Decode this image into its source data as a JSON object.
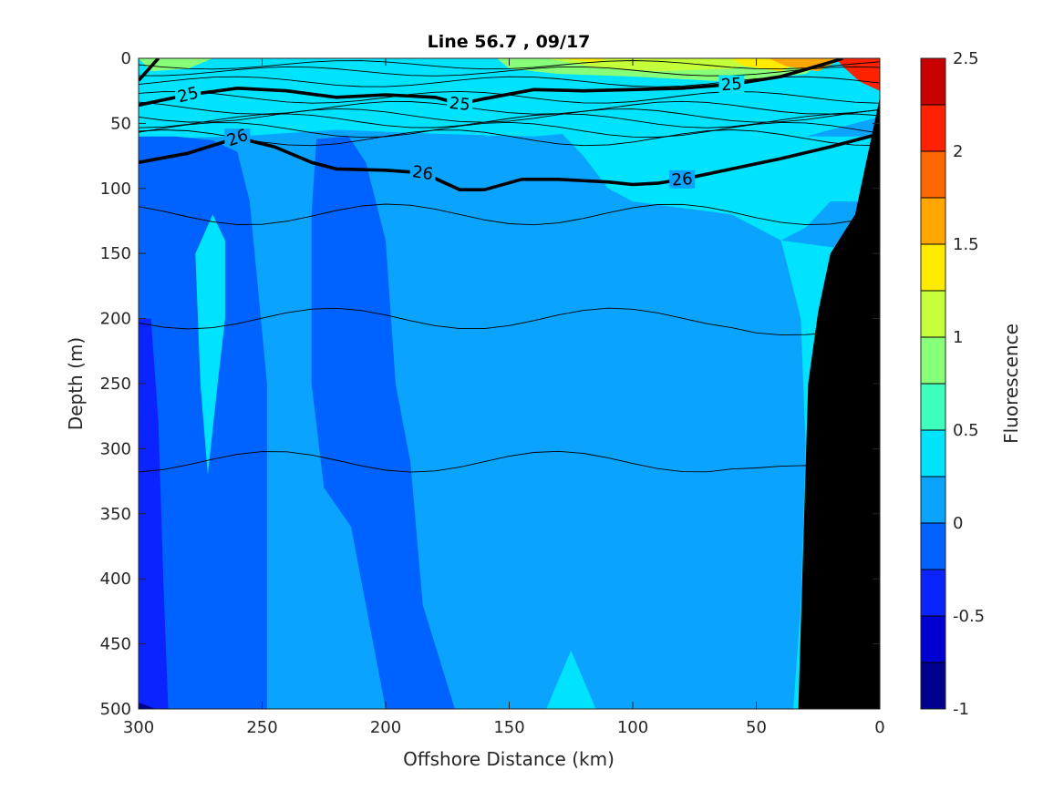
{
  "chart_data": {
    "type": "contour",
    "title": "Line 56.7 , 09/17",
    "xlabel": "Offshore Distance (km)",
    "ylabel": "Depth (m)",
    "xlim": [
      300,
      0
    ],
    "ylim": [
      0,
      500
    ],
    "x_reversed": true,
    "y_reversed": true,
    "x_ticks": [
      300,
      250,
      200,
      150,
      100,
      50,
      0
    ],
    "y_ticks": [
      0,
      50,
      100,
      150,
      200,
      250,
      300,
      350,
      400,
      450,
      500
    ],
    "colorbar": {
      "label": "Fluorescence",
      "range": [
        -1,
        2.5
      ],
      "tick_values": [
        -1,
        -0.5,
        0,
        0.5,
        1,
        1.5,
        2,
        2.5
      ],
      "tick_labels": [
        "-1",
        "-0.5",
        "0",
        "0.5",
        "1",
        "1.5",
        "2",
        "2.5"
      ],
      "levels": [
        -1,
        -0.75,
        -0.5,
        -0.25,
        0,
        0.25,
        0.5,
        0.75,
        1,
        1.25,
        1.5,
        1.75,
        2,
        2.25,
        2.5
      ],
      "colors": [
        "#00008f",
        "#0000d2",
        "#0a23ff",
        "#0062ff",
        "#0aa4ff",
        "#00e3ff",
        "#3fffbe",
        "#87ff79",
        "#c5ff3a",
        "#ffeb00",
        "#ffa700",
        "#ff6600",
        "#ff2200",
        "#c90000"
      ]
    },
    "density_contours": [
      {
        "label": "25",
        "bold": true,
        "points": [
          [
            300,
            36
          ],
          [
            280,
            28
          ],
          [
            260,
            23
          ],
          [
            240,
            25
          ],
          [
            220,
            30
          ],
          [
            200,
            28
          ],
          [
            180,
            30
          ],
          [
            170,
            35
          ],
          [
            160,
            31
          ],
          [
            140,
            24
          ],
          [
            120,
            25
          ],
          [
            100,
            24
          ],
          [
            80,
            23
          ],
          [
            60,
            20
          ],
          [
            40,
            14
          ],
          [
            20,
            3
          ],
          [
            15,
            0
          ]
        ]
      },
      {
        "label": "26",
        "bold": true,
        "points": [
          [
            300,
            80
          ],
          [
            280,
            73
          ],
          [
            260,
            61
          ],
          [
            245,
            68
          ],
          [
            230,
            80
          ],
          [
            220,
            85
          ],
          [
            200,
            86
          ],
          [
            185,
            88
          ],
          [
            170,
            101
          ],
          [
            160,
            101
          ],
          [
            145,
            93
          ],
          [
            130,
            93
          ],
          [
            110,
            95
          ],
          [
            100,
            97
          ],
          [
            90,
            96
          ],
          [
            80,
            93
          ],
          [
            60,
            85
          ],
          [
            40,
            77
          ],
          [
            20,
            68
          ],
          [
            0,
            58
          ]
        ]
      }
    ],
    "thin_contours_depth_m": [
      5,
      10,
      18,
      30,
      38,
      44,
      48,
      55,
      61,
      120,
      200,
      310
    ],
    "shelf_mask": {
      "color": "#000000",
      "points": [
        [
          33,
          500
        ],
        [
          29,
          250
        ],
        [
          25,
          195
        ],
        [
          20,
          150
        ],
        [
          10,
          120
        ],
        [
          0,
          30
        ],
        [
          0,
          500
        ]
      ]
    },
    "fluorescence_regions": [
      {
        "value": 0.9,
        "description": "surface bloom",
        "x_range": [
          150,
          20
        ],
        "depth_range": [
          0,
          20
        ]
      },
      {
        "value": 2.2,
        "description": "nearshore surface maximum",
        "x_range": [
          10,
          0
        ],
        "depth_range": [
          0,
          30
        ]
      },
      {
        "value": 0.4,
        "description": "upper layer",
        "x_range": [
          300,
          0
        ],
        "depth_range": [
          0,
          60
        ]
      },
      {
        "value": -0.5,
        "description": "offshore deep low",
        "x_range": [
          300,
          290
        ],
        "depth_range": [
          200,
          500
        ]
      },
      {
        "value": -0.1,
        "description": "column low",
        "x_range": [
          230,
          200
        ],
        "depth_range": [
          60,
          500
        ]
      }
    ]
  }
}
